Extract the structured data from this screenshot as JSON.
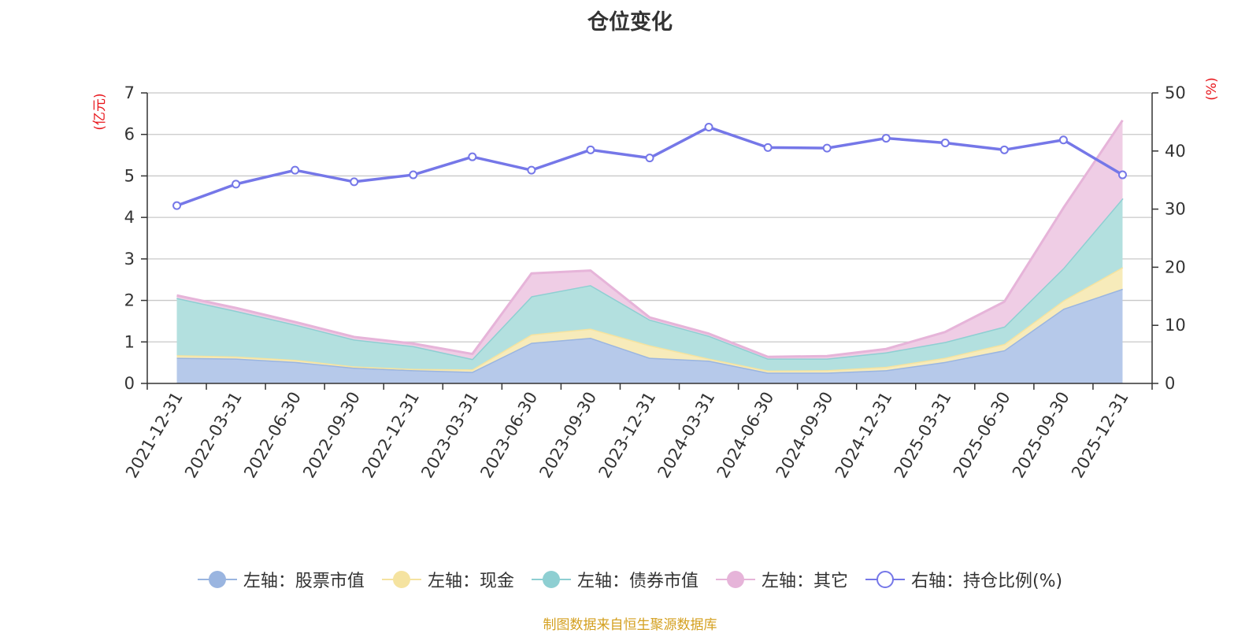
{
  "title": "仓位变化",
  "footer": "制图数据来自恒生聚源数据库",
  "chart_data": {
    "type": "area",
    "title": "仓位变化",
    "categories": [
      "2021-12-31",
      "2022-03-31",
      "2022-06-30",
      "2022-09-30",
      "2022-12-31",
      "2023-03-31",
      "2023-06-30",
      "2023-09-30",
      "2023-12-31",
      "2024-03-31",
      "2024-06-30",
      "2024-09-30",
      "2024-12-31",
      "2025-03-31",
      "2025-06-30",
      "2025-09-30",
      "2025-12-31"
    ],
    "left_axis": {
      "label": "(亿元)",
      "min": 0,
      "max": 7,
      "ticks": [
        0,
        1,
        2,
        3,
        4,
        5,
        6,
        7
      ]
    },
    "right_axis": {
      "label": "(%)",
      "min": 0,
      "max": 50,
      "ticks": [
        0,
        10,
        20,
        30,
        40,
        50
      ]
    },
    "stacked": true,
    "series": [
      {
        "name": "左轴：股票市值",
        "axis": "left",
        "color": "#9ab5e0",
        "fill": "#b6c9ea",
        "values": [
          0.62,
          0.6,
          0.52,
          0.38,
          0.32,
          0.28,
          0.98,
          1.1,
          0.62,
          0.55,
          0.26,
          0.26,
          0.32,
          0.52,
          0.8,
          1.8,
          2.28
        ]
      },
      {
        "name": "左轴：现金",
        "axis": "left",
        "color": "#f5e3a0",
        "fill": "#f7ebba",
        "values": [
          0.06,
          0.05,
          0.05,
          0.03,
          0.03,
          0.06,
          0.2,
          0.22,
          0.3,
          0.05,
          0.05,
          0.06,
          0.08,
          0.1,
          0.15,
          0.2,
          0.52
        ]
      },
      {
        "name": "左轴：债券市值",
        "axis": "left",
        "color": "#8ecfd2",
        "fill": "#b3e0df",
        "values": [
          1.38,
          1.1,
          0.85,
          0.65,
          0.55,
          0.25,
          0.92,
          1.05,
          0.62,
          0.55,
          0.29,
          0.28,
          0.35,
          0.38,
          0.42,
          0.78,
          1.66
        ]
      },
      {
        "name": "左轴：其它",
        "axis": "left",
        "color": "#e6b4d9",
        "fill": "#efcde5",
        "values": [
          0.06,
          0.07,
          0.06,
          0.06,
          0.06,
          0.12,
          0.55,
          0.35,
          0.05,
          0.05,
          0.04,
          0.06,
          0.08,
          0.24,
          0.6,
          1.45,
          1.88
        ]
      },
      {
        "name": "右轴：持仓比例(%)",
        "axis": "right",
        "color": "#7577e8",
        "type": "line",
        "values": [
          30.6,
          34.3,
          36.7,
          34.7,
          35.9,
          39.0,
          36.7,
          40.2,
          38.8,
          44.1,
          40.6,
          40.5,
          42.2,
          41.4,
          40.2,
          41.9,
          35.9
        ]
      }
    ]
  }
}
